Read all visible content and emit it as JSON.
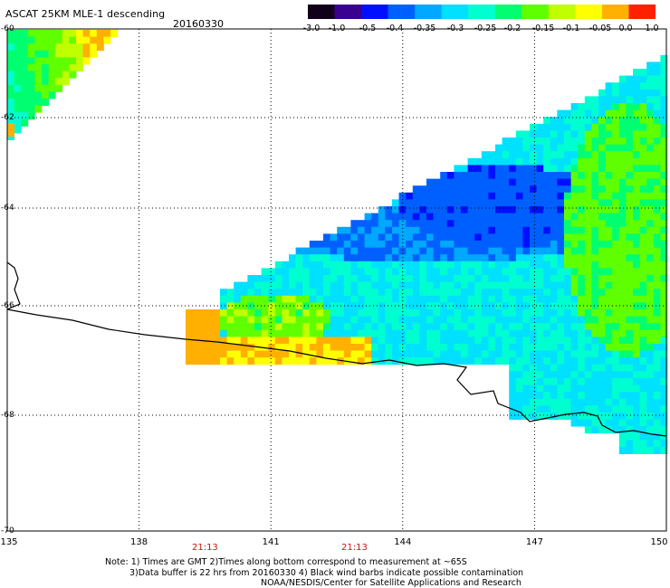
{
  "header": {
    "title": "ASCAT 25KM MLE-1 descending",
    "date": "20160330"
  },
  "colorbar": {
    "labels": [
      "-3.0",
      "-1.0",
      "-0.5",
      "-0.4",
      "-0.35",
      "-0.3",
      "-0.25",
      "-0.2",
      "-0.15",
      "-0.1",
      "-0.05",
      "0.0",
      "1.0"
    ],
    "colors": [
      "#10001a",
      "#3a0090",
      "#0010ff",
      "#0060ff",
      "#00a8ff",
      "#00e0ff",
      "#00ffd0",
      "#00ff70",
      "#60ff00",
      "#c0ff00",
      "#ffff00",
      "#ffb000",
      "#ff2000"
    ]
  },
  "axes": {
    "lat_labels": [
      "-60",
      "-62",
      "-64",
      "-66",
      "-68",
      "-70"
    ],
    "lon_labels": [
      "135",
      "138",
      "141",
      "144",
      "147",
      "150"
    ],
    "lat_range": [
      -70,
      -60
    ],
    "lon_range": [
      135,
      150
    ],
    "grid": "dotted"
  },
  "time_labels": [
    {
      "text": "21:13",
      "lon": 139.5
    },
    {
      "text": "21:13",
      "lon": 142.9
    }
  ],
  "notes": {
    "line1": "Note: 1) Times are GMT 2)Times along bottom correspond to measurement at ~65S",
    "line2": "3)Data buffer is 22 hrs from 20160330 4) Black wind barbs indicate possible contamination",
    "line3": "NOAA/NESDIS/Center for Satellite Applications and Research"
  }
}
